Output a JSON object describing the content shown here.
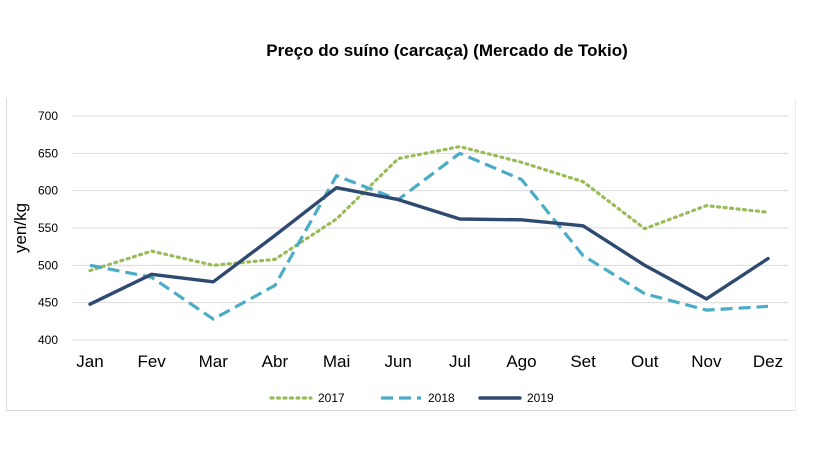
{
  "chart_data": {
    "type": "line",
    "title": "Preço do suíno (carcaça) (Mercado de Tokio)",
    "xlabel": "",
    "ylabel": "yen/kg",
    "ylim": [
      400,
      700
    ],
    "yticks": [
      400,
      450,
      500,
      550,
      600,
      650,
      700
    ],
    "grid": true,
    "legend_position": "bottom",
    "categories": [
      "Jan",
      "Fev",
      "Mar",
      "Abr",
      "Mai",
      "Jun",
      "Jul",
      "Ago",
      "Set",
      "Out",
      "Nov",
      "Dez"
    ],
    "series": [
      {
        "name": "2017",
        "style": "dotted",
        "color": "#9bbb59",
        "values": [
          493,
          519,
          500,
          508,
          562,
          643,
          659,
          638,
          612,
          549,
          580,
          571
        ]
      },
      {
        "name": "2018",
        "style": "dashed",
        "color": "#4bacc6",
        "values": [
          500,
          484,
          428,
          473,
          620,
          588,
          650,
          615,
          513,
          462,
          440,
          445
        ]
      },
      {
        "name": "2019",
        "style": "solid",
        "color": "#2e4a70",
        "values": [
          448,
          488,
          478,
          540,
          604,
          588,
          562,
          561,
          553,
          500,
          455,
          509
        ]
      }
    ]
  }
}
